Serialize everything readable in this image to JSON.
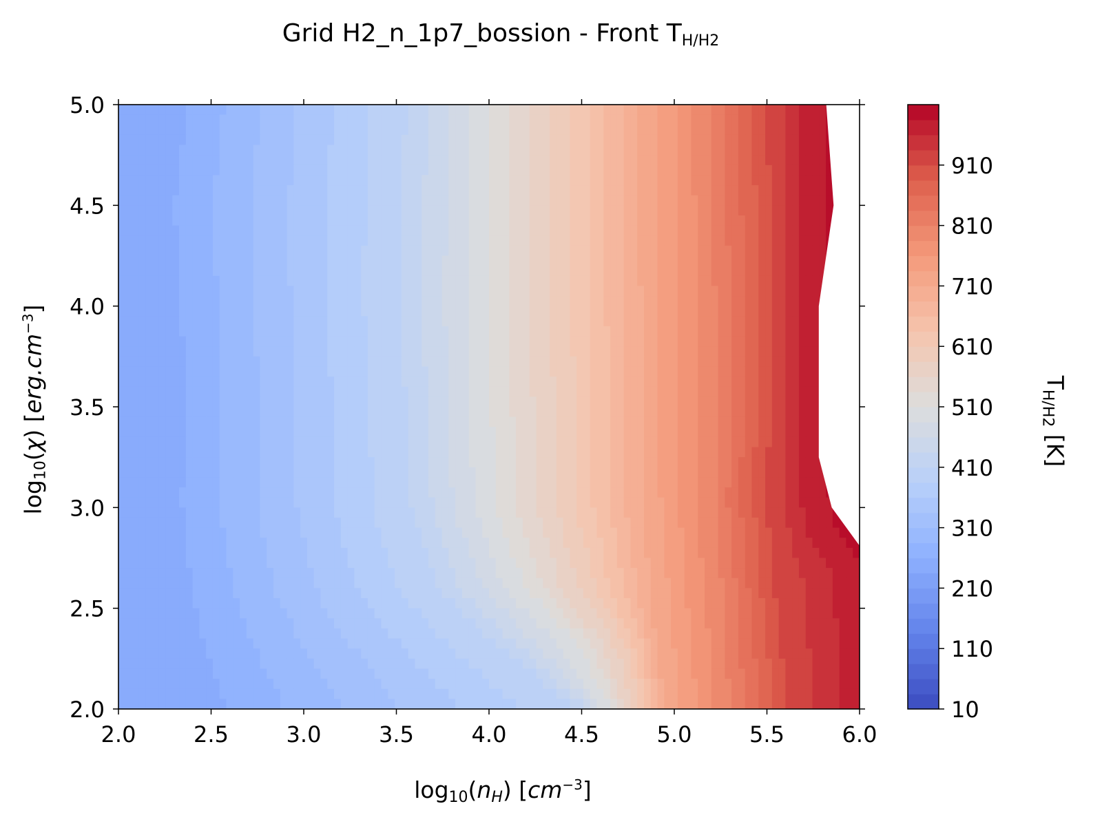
{
  "chart_data": {
    "type": "heatmap",
    "subtype": "filled-contour",
    "title": {
      "main": "Grid H2_n_1p7_bossion - Front T",
      "sub": "H/H2"
    },
    "xlabel": {
      "prefix": "log",
      "sub": "10",
      "open": "(",
      "var": "n",
      "var_sub": "H",
      "close": ") [",
      "unit": "cm",
      "exp": "−3",
      "end": "]"
    },
    "ylabel": {
      "prefix": "log",
      "sub": "10",
      "open": "(",
      "var": "χ",
      "close": ") [",
      "unit": "erg.cm",
      "exp": "−3",
      "end": "]"
    },
    "colorbar_label": {
      "main": "T",
      "sub": "H/H2",
      "unit": " [K]"
    },
    "xlim": [
      2.0,
      6.0
    ],
    "ylim": [
      2.0,
      5.0
    ],
    "xticks": [
      "2.0",
      "2.5",
      "3.0",
      "3.5",
      "4.0",
      "4.5",
      "5.0",
      "5.5",
      "6.0"
    ],
    "yticks": [
      "2.0",
      "2.5",
      "3.0",
      "3.5",
      "4.0",
      "4.5",
      "5.0"
    ],
    "colorbar": {
      "colormap": "coolwarm",
      "range": [
        10,
        1010
      ],
      "ticks": [
        "10",
        "110",
        "210",
        "310",
        "410",
        "510",
        "610",
        "710",
        "810",
        "910"
      ],
      "levels": 40
    },
    "grid": false,
    "estimated_contours": [
      {
        "T": 250,
        "points": [
          [
            2.3,
            5.0
          ],
          [
            2.22,
            4.5
          ],
          [
            2.26,
            4.0
          ],
          [
            2.28,
            3.5
          ],
          [
            2.26,
            3.0
          ],
          [
            2.32,
            2.5
          ],
          [
            2.45,
            2.0
          ]
        ]
      },
      {
        "T": 410,
        "points": [
          [
            3.55,
            5.0
          ],
          [
            3.52,
            4.0
          ],
          [
            3.58,
            3.0
          ],
          [
            3.72,
            2.6
          ],
          [
            4.0,
            2.35
          ],
          [
            4.48,
            2.0
          ]
        ]
      },
      {
        "T": 510,
        "points": [
          [
            4.0,
            5.0
          ],
          [
            4.0,
            4.0
          ],
          [
            4.03,
            3.0
          ],
          [
            4.2,
            2.6
          ],
          [
            4.5,
            2.3
          ],
          [
            4.65,
            2.0
          ]
        ]
      },
      {
        "T": 610,
        "points": [
          [
            4.45,
            5.0
          ],
          [
            4.45,
            4.0
          ],
          [
            4.47,
            3.0
          ],
          [
            4.58,
            2.6
          ],
          [
            4.75,
            2.3
          ],
          [
            4.82,
            2.0
          ]
        ]
      },
      {
        "T": 710,
        "points": [
          [
            4.8,
            5.0
          ],
          [
            4.82,
            4.0
          ],
          [
            4.83,
            3.0
          ],
          [
            4.88,
            2.5
          ],
          [
            4.95,
            2.0
          ]
        ]
      },
      {
        "T": 810,
        "points": [
          [
            5.2,
            5.0
          ],
          [
            5.22,
            4.0
          ],
          [
            5.22,
            3.0
          ],
          [
            5.27,
            2.5
          ],
          [
            5.3,
            2.0
          ]
        ]
      },
      {
        "T": 910,
        "points": [
          [
            5.5,
            5.0
          ],
          [
            5.53,
            4.0
          ],
          [
            5.5,
            3.0
          ],
          [
            5.55,
            2.5
          ],
          [
            5.62,
            2.0
          ]
        ]
      },
      {
        "T": 980,
        "points": [
          [
            5.73,
            5.0
          ],
          [
            5.75,
            4.0
          ],
          [
            5.72,
            3.5
          ],
          [
            5.72,
            3.2
          ],
          [
            5.79,
            2.9
          ],
          [
            5.95,
            2.7
          ],
          [
            6.0,
            2.65
          ]
        ]
      }
    ],
    "no_data_region": {
      "points": [
        [
          5.82,
          5.0
        ],
        [
          5.86,
          4.5
        ],
        [
          5.78,
          4.0
        ],
        [
          5.78,
          3.5
        ],
        [
          5.78,
          3.25
        ],
        [
          5.85,
          3.0
        ],
        [
          6.0,
          2.81
        ],
        [
          6.0,
          5.0
        ]
      ]
    }
  }
}
